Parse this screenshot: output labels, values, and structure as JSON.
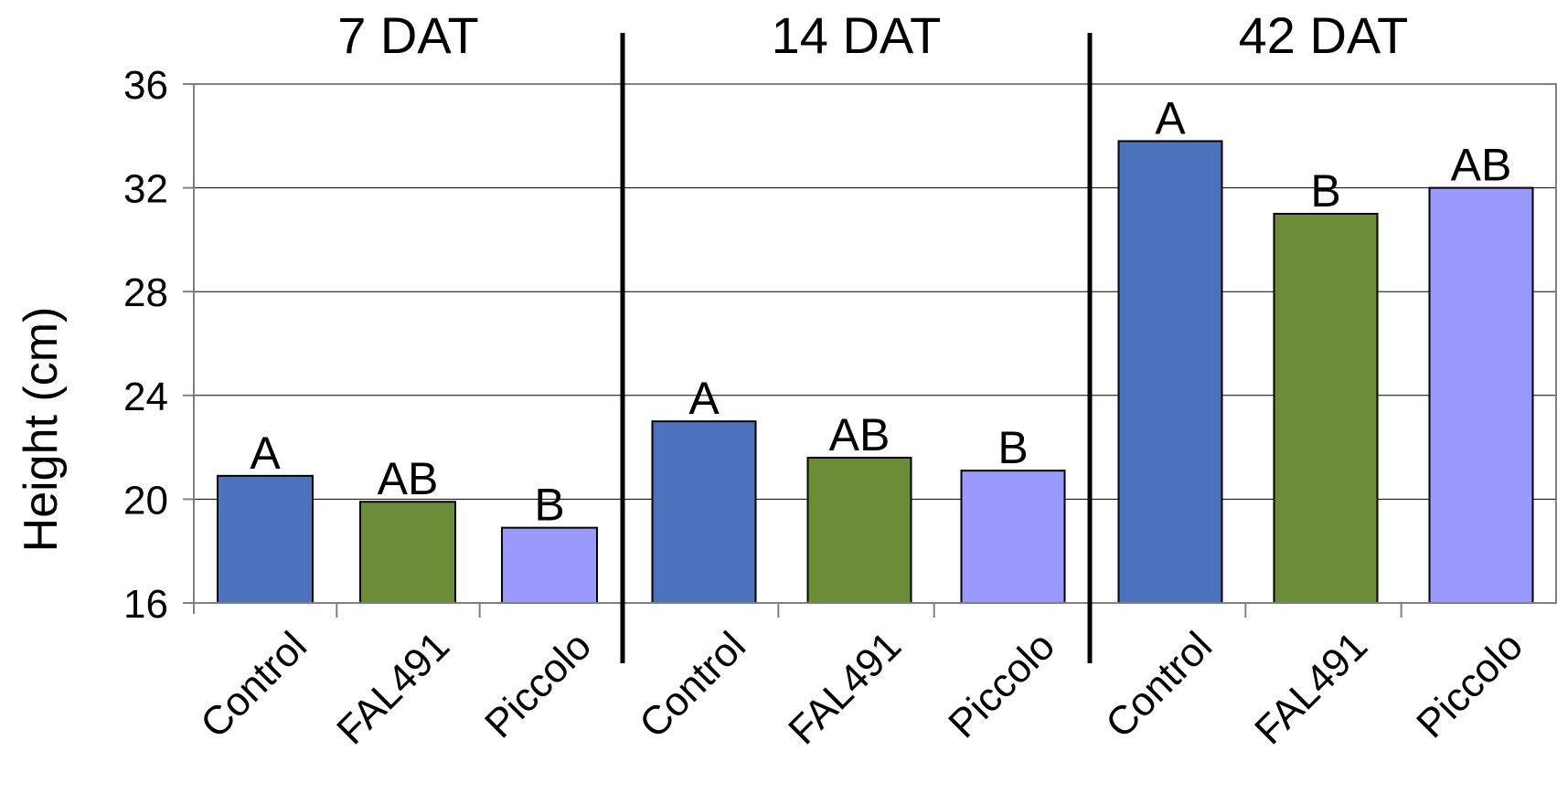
{
  "chart_data": {
    "type": "bar",
    "ylabel": "Height (cm)",
    "ylim": [
      16,
      36
    ],
    "yticks": [
      16,
      20,
      24,
      28,
      32,
      36
    ],
    "grid": true,
    "colors": {
      "Control": "#4a72bd",
      "FAL491": "#6c8c38",
      "Piccolo": "#9a9afc"
    },
    "panels": [
      {
        "title": "7 DAT",
        "categories": [
          "Control",
          "FAL491",
          "Piccolo"
        ],
        "values": [
          20.9,
          19.9,
          18.9
        ],
        "labels": [
          "A",
          "AB",
          "B"
        ]
      },
      {
        "title": "14 DAT",
        "categories": [
          "Control",
          "FAL491",
          "Piccolo"
        ],
        "values": [
          23.0,
          21.6,
          21.1
        ],
        "labels": [
          "A",
          "AB",
          "B"
        ]
      },
      {
        "title": "42 DAT",
        "categories": [
          "Control",
          "FAL491",
          "Piccolo"
        ],
        "values": [
          33.8,
          31.0,
          32.0
        ],
        "labels": [
          "A",
          "B",
          "AB"
        ]
      }
    ]
  }
}
